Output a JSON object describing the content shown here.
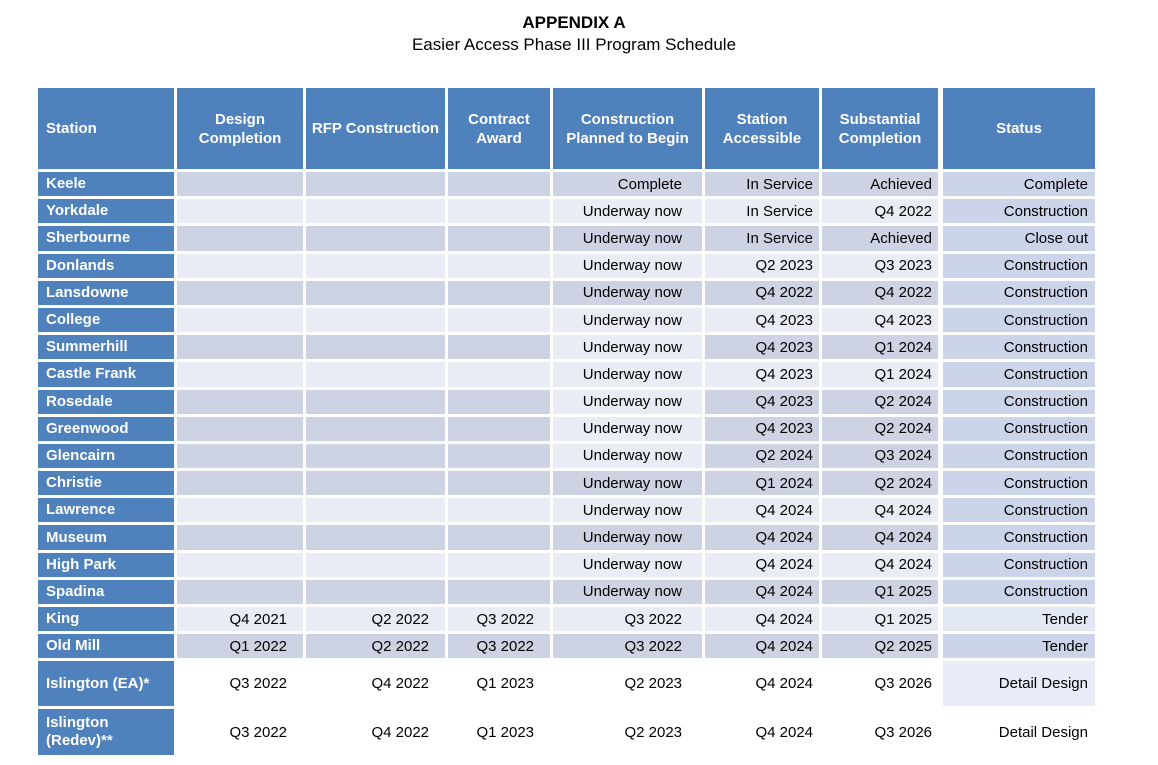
{
  "title": "APPENDIX A",
  "subtitle": "Easier Access Phase III Program Schedule",
  "colors": {
    "header_blue": "#4f81bd",
    "stripe_dark": "#ced3e4",
    "stripe_light": "#e9ecf4",
    "status_column_fill": "#ccd4ea",
    "status_column_light": "#e3e8f5",
    "status_column_faint": "#e8ecf8",
    "header_text": "#ffffff",
    "body_text": "#000000"
  },
  "table": {
    "columns": [
      {
        "id": "station",
        "label": "Station"
      },
      {
        "id": "design",
        "label": "Design Completion"
      },
      {
        "id": "rfp",
        "label": "RFP Construction"
      },
      {
        "id": "contract",
        "label": "Contract Award"
      },
      {
        "id": "planned",
        "label": "Construction Planned to Begin"
      },
      {
        "id": "accessible",
        "label": "Station Accessible"
      },
      {
        "id": "substantial",
        "label": "Substantial Completion"
      },
      {
        "id": "status",
        "label": "Status"
      }
    ],
    "rows": [
      {
        "station": "Keele",
        "design": "",
        "rfp": "",
        "contract": "",
        "planned": "Complete",
        "accessible": "In Service",
        "substantial": "Achieved",
        "status": "Complete",
        "shade": {
          "main": "dark",
          "planned": "dark",
          "status": "fill"
        }
      },
      {
        "station": "Yorkdale",
        "design": "",
        "rfp": "",
        "contract": "",
        "planned": "Underway now",
        "accessible": "In Service",
        "substantial": "Q4 2022",
        "status": "Construction",
        "shade": {
          "main": "light",
          "planned": "light",
          "status": "fill"
        }
      },
      {
        "station": "Sherbourne",
        "design": "",
        "rfp": "",
        "contract": "",
        "planned": "Underway now",
        "accessible": "In Service",
        "substantial": "Achieved",
        "status": "Close out",
        "shade": {
          "main": "dark",
          "planned": "dark",
          "status": "fill"
        }
      },
      {
        "station": "Donlands",
        "design": "",
        "rfp": "",
        "contract": "",
        "planned": "Underway now",
        "accessible": "Q2 2023",
        "substantial": "Q3 2023",
        "status": "Construction",
        "shade": {
          "main": "light",
          "planned": "light",
          "status": "fill"
        }
      },
      {
        "station": "Lansdowne",
        "design": "",
        "rfp": "",
        "contract": "",
        "planned": "Underway now",
        "accessible": "Q4 2022",
        "substantial": "Q4 2022",
        "status": "Construction",
        "shade": {
          "main": "dark",
          "planned": "dark",
          "status": "fill"
        }
      },
      {
        "station": "College",
        "design": "",
        "rfp": "",
        "contract": "",
        "planned": "Underway now",
        "accessible": "Q4 2023",
        "substantial": "Q4 2023",
        "status": "Construction",
        "shade": {
          "main": "light",
          "planned": "light",
          "status": "fill"
        }
      },
      {
        "station": "Summerhill",
        "design": "",
        "rfp": "",
        "contract": "",
        "planned": "Underway now",
        "accessible": "Q4 2023",
        "substantial": "Q1 2024",
        "status": "Construction",
        "shade": {
          "main": "dark",
          "planned": "light",
          "status": "fill"
        }
      },
      {
        "station": "Castle Frank",
        "design": "",
        "rfp": "",
        "contract": "",
        "planned": "Underway now",
        "accessible": "Q4 2023",
        "substantial": "Q1 2024",
        "status": "Construction",
        "shade": {
          "main": "light",
          "planned": "light",
          "status": "fill"
        }
      },
      {
        "station": "Rosedale",
        "design": "",
        "rfp": "",
        "contract": "",
        "planned": "Underway now",
        "accessible": "Q4 2023",
        "substantial": "Q2 2024",
        "status": "Construction",
        "shade": {
          "main": "dark",
          "planned": "light",
          "status": "fill"
        }
      },
      {
        "station": "Greenwood",
        "design": "",
        "rfp": "",
        "contract": "",
        "planned": "Underway now",
        "accessible": "Q4 2023",
        "substantial": "Q2 2024",
        "status": "Construction",
        "shade": {
          "main": "dark",
          "planned": "light",
          "status": "fill"
        }
      },
      {
        "station": "Glencairn",
        "design": "",
        "rfp": "",
        "contract": "",
        "planned": "Underway now",
        "accessible": "Q2 2024",
        "substantial": "Q3 2024",
        "status": "Construction",
        "shade": {
          "main": "dark",
          "planned": "light",
          "status": "fill"
        }
      },
      {
        "station": "Christie",
        "design": "",
        "rfp": "",
        "contract": "",
        "planned": "Underway now",
        "accessible": "Q1 2024",
        "substantial": "Q2 2024",
        "status": "Construction",
        "shade": {
          "main": "dark",
          "planned": "dark",
          "status": "fill"
        }
      },
      {
        "station": "Lawrence",
        "design": "",
        "rfp": "",
        "contract": "",
        "planned": "Underway now",
        "accessible": "Q4 2024",
        "substantial": "Q4 2024",
        "status": "Construction",
        "shade": {
          "main": "light",
          "planned": "light",
          "status": "fill"
        }
      },
      {
        "station": "Museum",
        "design": "",
        "rfp": "",
        "contract": "",
        "planned": "Underway now",
        "accessible": "Q4 2024",
        "substantial": "Q4 2024",
        "status": "Construction",
        "shade": {
          "main": "dark",
          "planned": "dark",
          "status": "fill"
        }
      },
      {
        "station": "High Park",
        "design": "",
        "rfp": "",
        "contract": "",
        "planned": "Underway now",
        "accessible": "Q4 2024",
        "substantial": "Q4 2024",
        "status": "Construction",
        "shade": {
          "main": "light",
          "planned": "light",
          "status": "fill"
        }
      },
      {
        "station": "Spadina",
        "design": "",
        "rfp": "",
        "contract": "",
        "planned": "Underway now",
        "accessible": "Q4 2024",
        "substantial": "Q1 2025",
        "status": "Construction",
        "shade": {
          "main": "dark",
          "planned": "dark",
          "status": "fill"
        }
      },
      {
        "station": "King",
        "design": "Q4 2021",
        "rfp": "Q2 2022",
        "contract": "Q3 2022",
        "planned": "Q3 2022",
        "accessible": "Q4 2024",
        "substantial": "Q1 2025",
        "status": "Tender",
        "shade": {
          "main": "light",
          "planned": "light",
          "status": "light"
        }
      },
      {
        "station": "Old Mill",
        "design": "Q1 2022",
        "rfp": "Q2 2022",
        "contract": "Q3 2022",
        "planned": "Q3 2022",
        "accessible": "Q4 2024",
        "substantial": "Q2 2025",
        "status": "Tender",
        "shade": {
          "main": "dark",
          "planned": "dark",
          "status": "fill"
        }
      },
      {
        "station": "Islington (EA)*",
        "design": "Q3 2022",
        "rfp": "Q4 2022",
        "contract": "Q1 2023",
        "planned": "Q2 2023",
        "accessible": "Q4 2024",
        "substantial": "Q3 2026",
        "status": "Detail Design",
        "shade": {
          "main": "white",
          "planned": "white",
          "status": "faint"
        },
        "tall": 1
      },
      {
        "station": "Islington (Redev)**",
        "design": "Q3 2022",
        "rfp": "Q4 2022",
        "contract": "Q1 2023",
        "planned": "Q2 2023",
        "accessible": "Q4 2024",
        "substantial": "Q3 2026",
        "status": "Detail Design",
        "shade": {
          "main": "white",
          "planned": "white",
          "status": "white"
        },
        "tall": 2
      }
    ]
  }
}
